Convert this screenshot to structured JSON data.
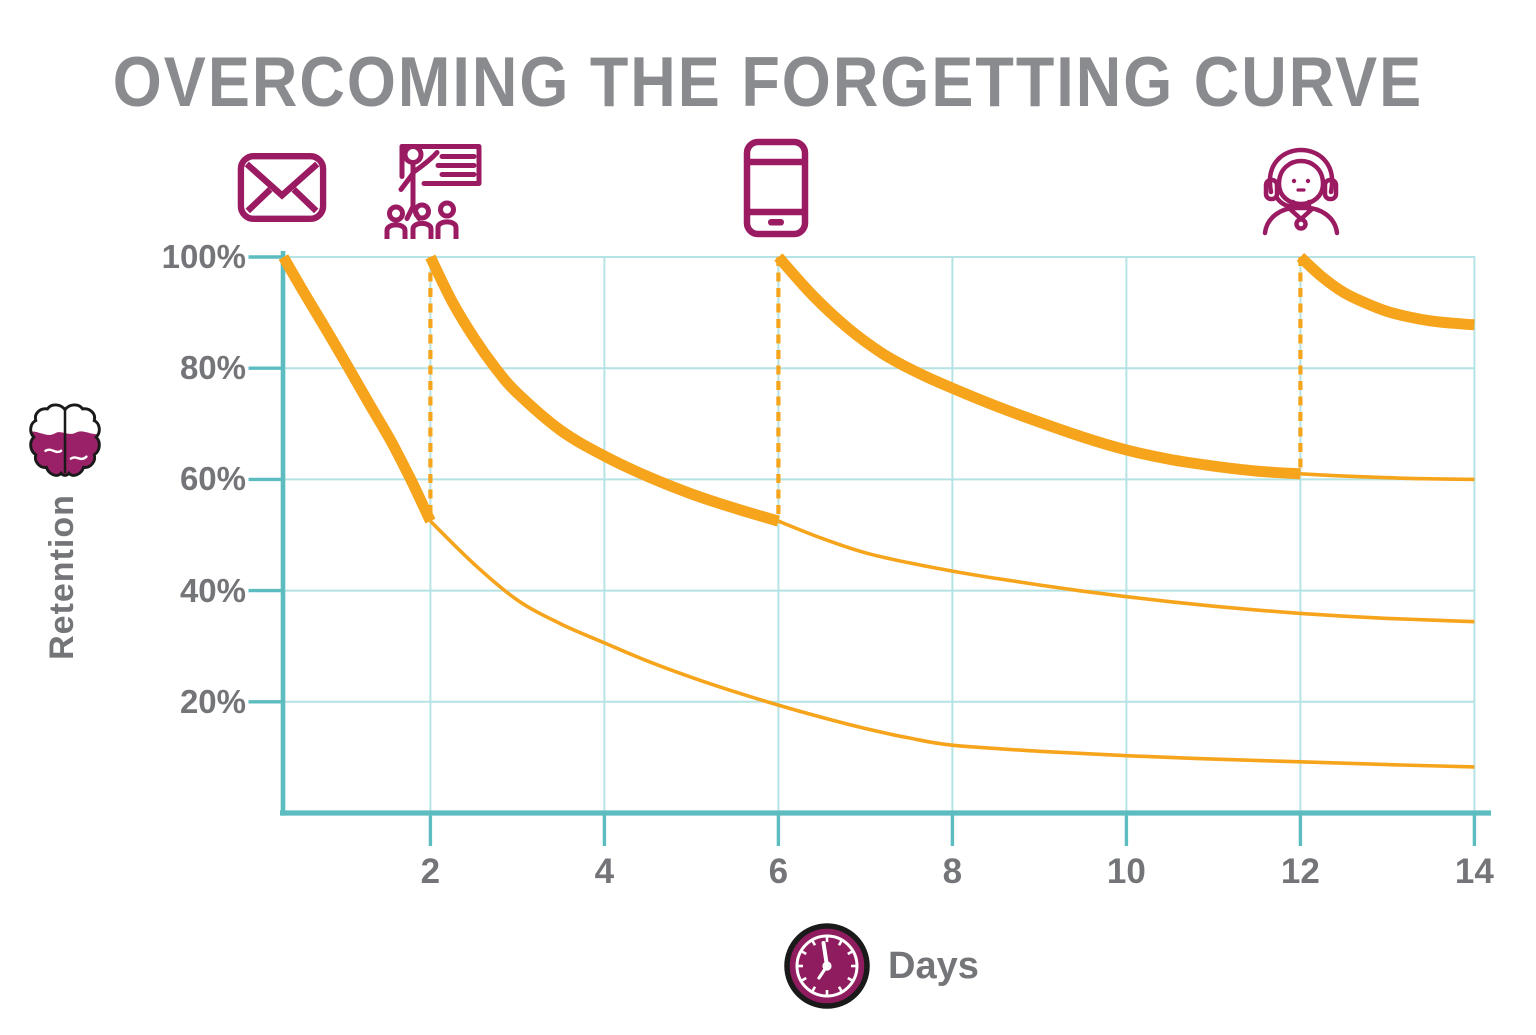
{
  "title": "OVERCOMING THE FORGETTING CURVE",
  "colors": {
    "curve_orange": "#F6A41C",
    "axis_teal": "#5CBCC0",
    "grid_teal": "#B5E2E4",
    "title_gray": "#8A8B8E",
    "label_gray": "#747579",
    "icon_magenta": "#9B1B63",
    "brain_fill": "#9A2167",
    "clock_fill": "#8E1C5E"
  },
  "icons": {
    "email": "email-envelope-icon",
    "training": "classroom-training-icon",
    "mobile": "mobile-phone-icon",
    "coaching": "support-coach-icon",
    "brain": "brain-icon",
    "clock": "clock-icon"
  },
  "chart_data": {
    "type": "line",
    "title": "OVERCOMING THE FORGETTING CURVE",
    "xlabel": "Days",
    "ylabel": "Retention",
    "x_ticks": [
      2,
      4,
      6,
      8,
      10,
      12,
      14
    ],
    "x_tick_labels": [
      "2",
      "4",
      "6",
      "8",
      "10",
      "12",
      "14"
    ],
    "y_ticks": [
      100,
      80,
      60,
      40,
      20
    ],
    "y_tick_labels": [
      "100%",
      "80%",
      "60%",
      "40%",
      "20%"
    ],
    "xlim": [
      0,
      14
    ],
    "ylim": [
      0,
      100
    ],
    "grid": true,
    "legend": "none",
    "series": [
      {
        "name": "initial-learning-decay",
        "style": "thick",
        "points": [
          [
            0.31,
            100
          ],
          [
            0.55,
            93.5
          ],
          [
            0.8,
            87
          ],
          [
            1.05,
            80.3
          ],
          [
            1.3,
            73.5
          ],
          [
            1.55,
            66.8
          ],
          [
            1.78,
            59.8
          ],
          [
            2,
            52.5
          ]
        ]
      },
      {
        "name": "forgetting-without-boost-after-day2",
        "style": "thin",
        "points": [
          [
            2,
            52.5
          ],
          [
            2.5,
            44.8
          ],
          [
            3,
            38.3
          ],
          [
            3.5,
            34
          ],
          [
            4,
            30.6
          ],
          [
            4.5,
            27.3
          ],
          [
            5,
            24.4
          ],
          [
            5.5,
            21.8
          ],
          [
            6,
            19.4
          ],
          [
            6.5,
            17.2
          ],
          [
            7,
            15.2
          ],
          [
            7.5,
            13.5
          ],
          [
            8,
            12.2
          ],
          [
            9,
            11.1
          ],
          [
            10,
            10.3
          ],
          [
            11,
            9.7
          ],
          [
            12,
            9.2
          ],
          [
            13,
            8.7
          ],
          [
            14,
            8.3
          ]
        ]
      },
      {
        "name": "boosted-decay-after-day2",
        "style": "thick",
        "points": [
          [
            2,
            100
          ],
          [
            2.25,
            92
          ],
          [
            2.5,
            85.5
          ],
          [
            2.75,
            80
          ],
          [
            3,
            75.5
          ],
          [
            3.5,
            68.8
          ],
          [
            4,
            64.2
          ],
          [
            4.5,
            60.5
          ],
          [
            5,
            57.4
          ],
          [
            5.5,
            54.8
          ],
          [
            6,
            52.5
          ]
        ]
      },
      {
        "name": "forgetting-without-boost-after-day6",
        "style": "thin",
        "points": [
          [
            6,
            52.5
          ],
          [
            6.5,
            49.4
          ],
          [
            7,
            46.8
          ],
          [
            7.5,
            45
          ],
          [
            8,
            43.5
          ],
          [
            8.5,
            42.2
          ],
          [
            9,
            41
          ],
          [
            9.5,
            39.9
          ],
          [
            10,
            38.9
          ],
          [
            10.5,
            38
          ],
          [
            11,
            37.2
          ],
          [
            11.5,
            36.5
          ],
          [
            12,
            35.9
          ],
          [
            12.5,
            35.4
          ],
          [
            13,
            35
          ],
          [
            13.5,
            34.7
          ],
          [
            14,
            34.4
          ]
        ]
      },
      {
        "name": "boosted-decay-after-day6",
        "style": "thick",
        "points": [
          [
            6,
            100
          ],
          [
            6.4,
            93
          ],
          [
            6.8,
            87.2
          ],
          [
            7.2,
            82.6
          ],
          [
            7.6,
            79.2
          ],
          [
            8,
            76.4
          ],
          [
            8.5,
            73.2
          ],
          [
            9,
            70.3
          ],
          [
            9.5,
            67.6
          ],
          [
            10,
            65.3
          ],
          [
            10.5,
            63.6
          ],
          [
            11,
            62.4
          ],
          [
            11.5,
            61.5
          ],
          [
            12,
            61
          ]
        ]
      },
      {
        "name": "forgetting-without-boost-after-day12",
        "style": "thin",
        "points": [
          [
            12,
            61
          ],
          [
            12.5,
            60.6
          ],
          [
            13,
            60.3
          ],
          [
            13.5,
            60.1
          ],
          [
            14,
            60
          ]
        ]
      },
      {
        "name": "boosted-decay-after-day12",
        "style": "thick",
        "points": [
          [
            12,
            100
          ],
          [
            12.25,
            96.4
          ],
          [
            12.5,
            93.6
          ],
          [
            12.75,
            91.7
          ],
          [
            13,
            90.2
          ],
          [
            13.25,
            89.2
          ],
          [
            13.5,
            88.5
          ],
          [
            13.75,
            88.1
          ],
          [
            14,
            87.8
          ]
        ]
      }
    ],
    "boosts": [
      {
        "day": 2,
        "from_pct": 52.5,
        "to_pct": 100
      },
      {
        "day": 6,
        "from_pct": 52.5,
        "to_pct": 100
      },
      {
        "day": 12,
        "from_pct": 61,
        "to_pct": 100
      }
    ],
    "events": [
      {
        "day": 0.3,
        "icon": "email-envelope"
      },
      {
        "day": 2,
        "icon": "classroom-training"
      },
      {
        "day": 6,
        "icon": "mobile-phone"
      },
      {
        "day": 12,
        "icon": "support-coach"
      }
    ]
  }
}
